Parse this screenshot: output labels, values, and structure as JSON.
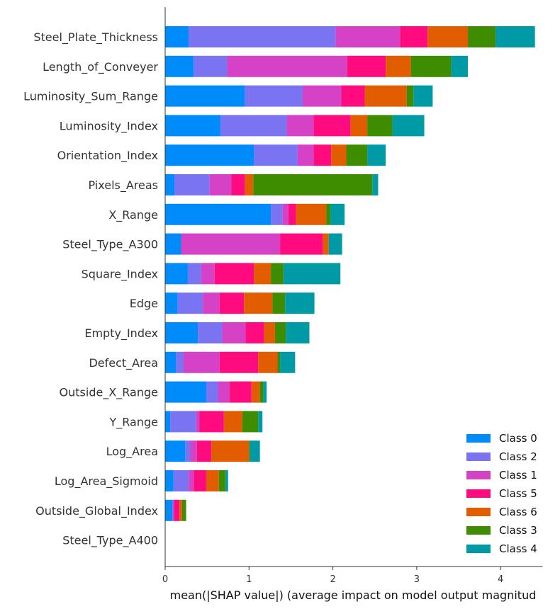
{
  "chart_data": {
    "type": "bar",
    "stacked": true,
    "orientation": "horizontal",
    "title": "",
    "xlabel": "mean(|SHAP value|) (average impact on model output magnitud",
    "ylabel": "",
    "xlim": [
      0,
      4.5
    ],
    "xticks": [
      0,
      1,
      2,
      3,
      4
    ],
    "grid": false,
    "legend_position": "lower-right",
    "categories": [
      "Steel_Plate_Thickness",
      "Length_of_Conveyer",
      "Luminosity_Sum_Range",
      "Luminosity_Index",
      "Orientation_Index",
      "Pixels_Areas",
      "X_Range",
      "Steel_Type_A300",
      "Square_Index",
      "Edge",
      "Empty_Index",
      "Defect_Area",
      "Outside_X_Range",
      "Y_Range",
      "Log_Area",
      "Log_Area_Sigmoid",
      "Outside_Global_Index",
      "Steel_Type_A400"
    ],
    "series": [
      {
        "name": "Class 0",
        "color": "#008bfb",
        "values": [
          0.28,
          0.34,
          0.95,
          0.66,
          1.06,
          0.11,
          1.26,
          0.19,
          0.27,
          0.15,
          0.39,
          0.13,
          0.49,
          0.06,
          0.24,
          0.1,
          0.09,
          0.0
        ]
      },
      {
        "name": "Class 2",
        "color": "#7a74f2",
        "values": [
          1.75,
          0.4,
          0.69,
          0.79,
          0.52,
          0.42,
          0.14,
          0.0,
          0.16,
          0.3,
          0.29,
          0.09,
          0.14,
          0.31,
          0.06,
          0.18,
          0.0,
          0.0
        ]
      },
      {
        "name": "Class 1",
        "color": "#d542c6",
        "values": [
          0.77,
          1.43,
          0.46,
          0.32,
          0.19,
          0.26,
          0.07,
          1.18,
          0.16,
          0.2,
          0.28,
          0.43,
          0.14,
          0.04,
          0.08,
          0.06,
          0.02,
          0.0
        ]
      },
      {
        "name": "Class 5",
        "color": "#ff0b80",
        "values": [
          0.33,
          0.46,
          0.28,
          0.44,
          0.21,
          0.16,
          0.09,
          0.51,
          0.47,
          0.29,
          0.22,
          0.46,
          0.26,
          0.29,
          0.17,
          0.15,
          0.06,
          0.0
        ]
      },
      {
        "name": "Class 6",
        "color": "#e15d00",
        "values": [
          0.48,
          0.3,
          0.5,
          0.2,
          0.18,
          0.1,
          0.36,
          0.07,
          0.2,
          0.34,
          0.13,
          0.23,
          0.1,
          0.22,
          0.45,
          0.15,
          0.03,
          0.0
        ]
      },
      {
        "name": "Class 3",
        "color": "#3e8d00",
        "values": [
          0.33,
          0.48,
          0.08,
          0.3,
          0.25,
          1.42,
          0.05,
          0.0,
          0.15,
          0.15,
          0.13,
          0.03,
          0.04,
          0.19,
          0.01,
          0.08,
          0.05,
          0.0
        ]
      },
      {
        "name": "Class 4",
        "color": "#009aa6",
        "values": [
          0.47,
          0.2,
          0.23,
          0.38,
          0.22,
          0.07,
          0.17,
          0.16,
          0.68,
          0.35,
          0.28,
          0.18,
          0.04,
          0.05,
          0.12,
          0.03,
          0.0,
          0.0
        ]
      }
    ],
    "legend_order": [
      "Class 0",
      "Class 2",
      "Class 1",
      "Class 5",
      "Class 6",
      "Class 3",
      "Class 4"
    ]
  }
}
